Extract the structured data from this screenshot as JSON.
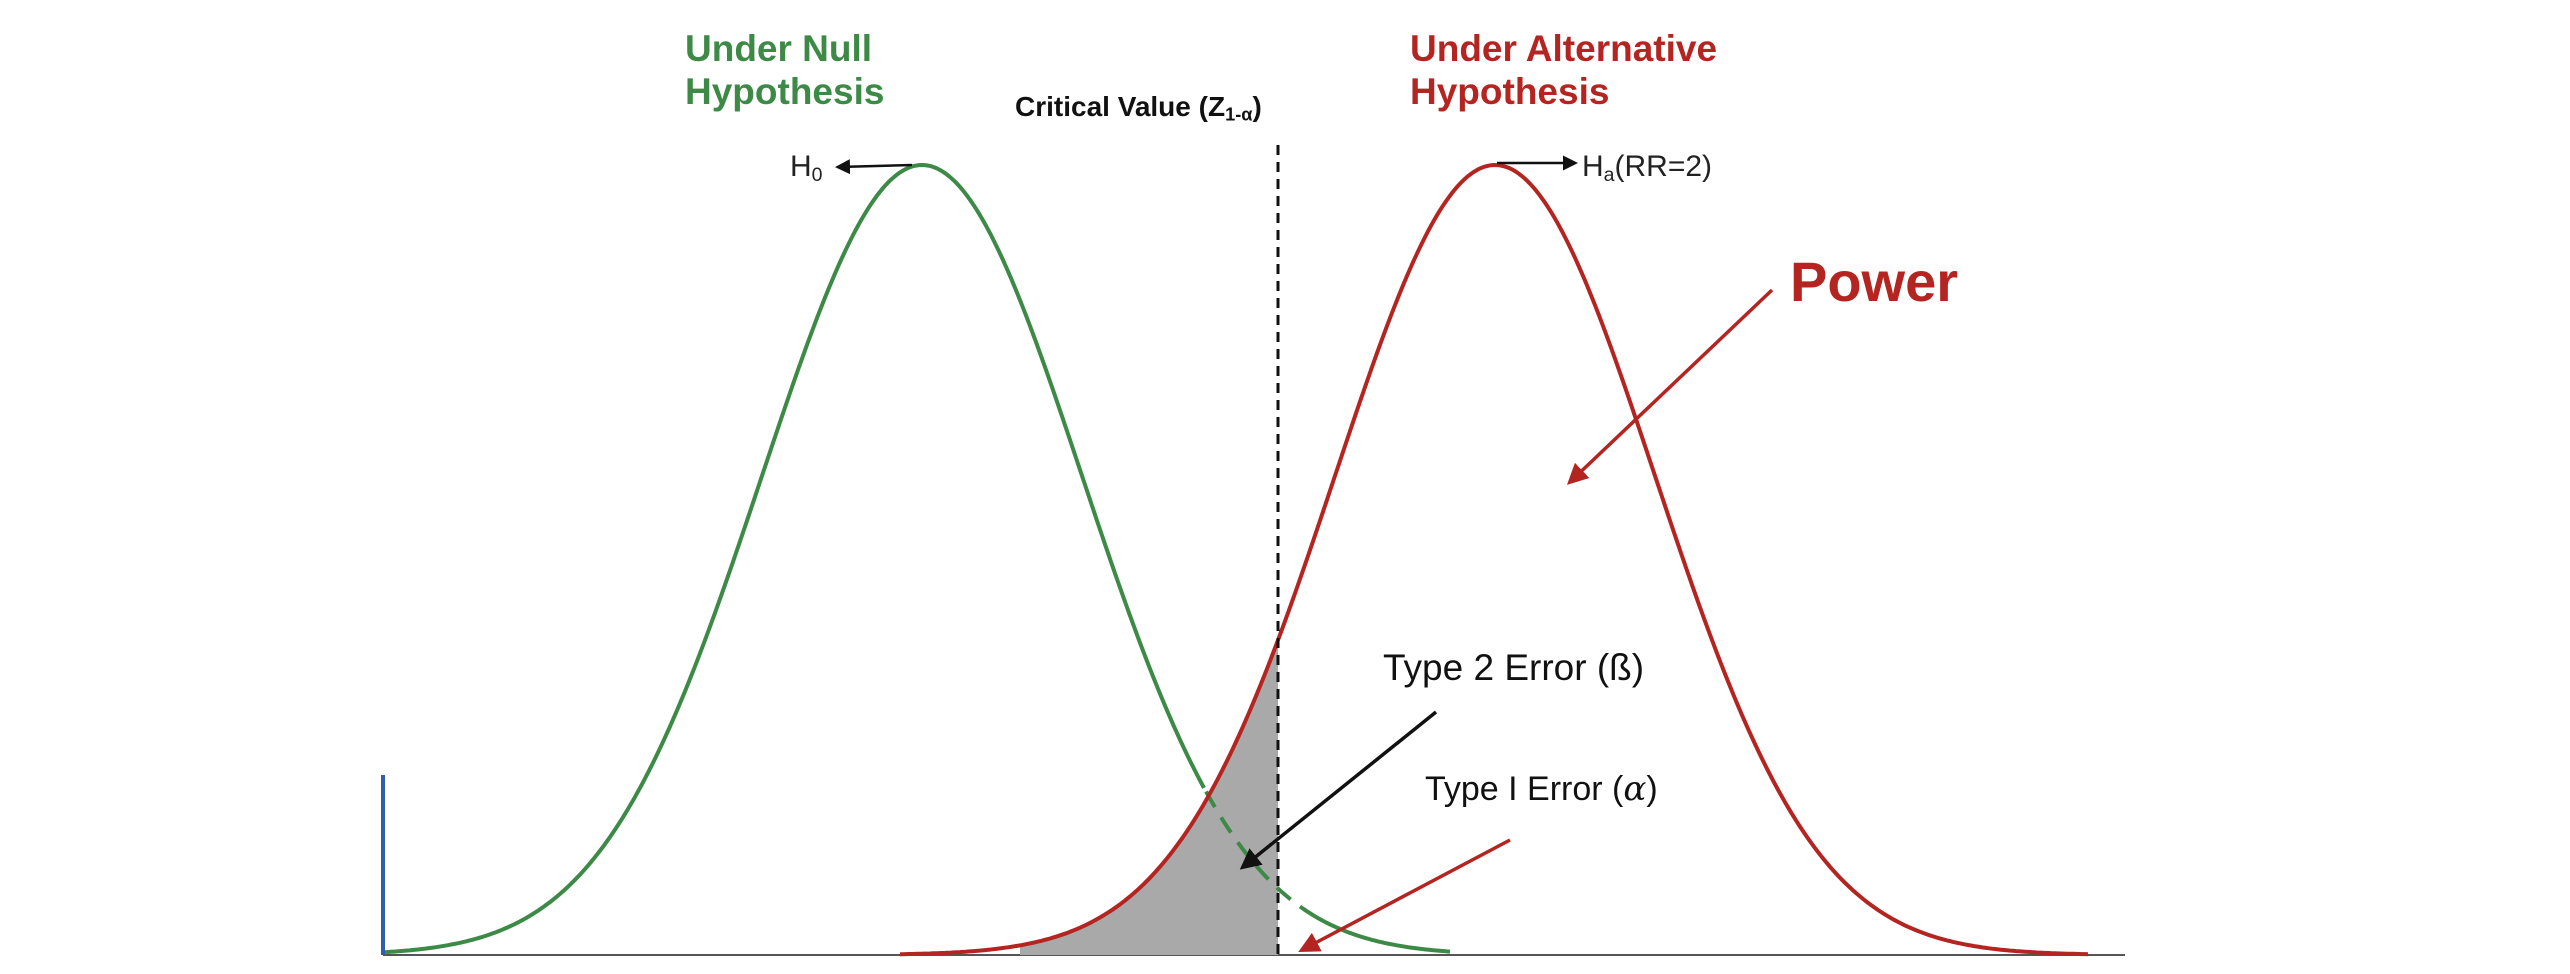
{
  "null_title_line1": "Under Null",
  "null_title_line2": "Hypothesis",
  "alt_title_line1": "Under Alternative",
  "alt_title_line2": "Hypothesis",
  "critical_value": {
    "text": "Critical Value (Z",
    "sub": "1-α",
    "close": ")"
  },
  "h0": {
    "text": "H",
    "sub": "0"
  },
  "ha": {
    "text": "H",
    "sub": "a",
    "suffix": "(RR=2)"
  },
  "power_label": "Power",
  "type2_label": "Type 2 Error (ß)",
  "type1_label": {
    "text": "Type I Error (",
    "symbol": "α",
    "close": ")"
  },
  "colors": {
    "null": "#3c8a46",
    "alternative": "#b42521",
    "beta_fill": "#a9a9a9",
    "text": "#111111"
  }
}
